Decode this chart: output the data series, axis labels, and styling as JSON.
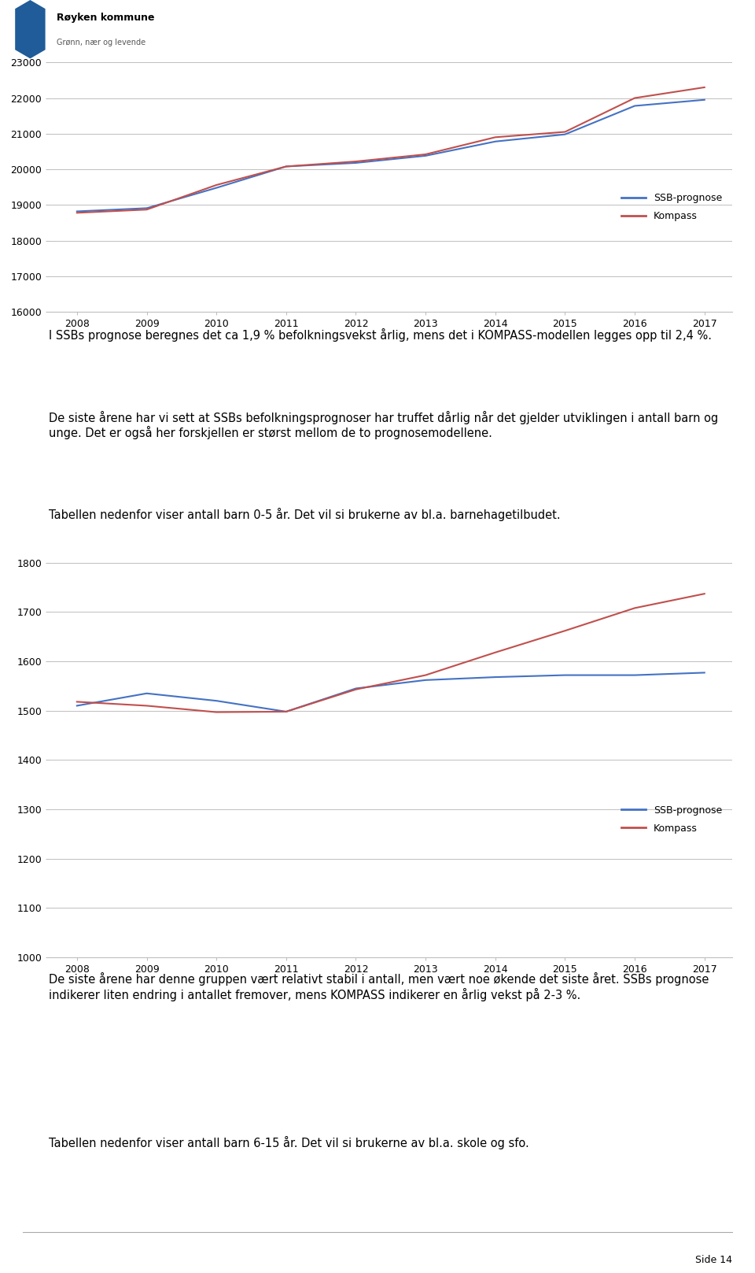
{
  "years": [
    2008,
    2009,
    2010,
    2011,
    2012,
    2013,
    2014,
    2015,
    2016,
    2017
  ],
  "chart1_ssb": [
    18820,
    18910,
    19480,
    20080,
    20180,
    20380,
    20780,
    20980,
    21780,
    21950
  ],
  "chart1_kompass": [
    18780,
    18870,
    19560,
    20080,
    20220,
    20420,
    20900,
    21050,
    22000,
    22300
  ],
  "chart1_ylim": [
    16000,
    23000
  ],
  "chart1_yticks": [
    16000,
    17000,
    18000,
    19000,
    20000,
    21000,
    22000,
    23000
  ],
  "chart2_ssb": [
    1510,
    1535,
    1520,
    1498,
    1545,
    1562,
    1568,
    1572,
    1572,
    1577
  ],
  "chart2_kompass": [
    1518,
    1510,
    1497,
    1498,
    1543,
    1572,
    1618,
    1662,
    1708,
    1737
  ],
  "chart2_ylim": [
    1000,
    1800
  ],
  "chart2_yticks": [
    1000,
    1100,
    1200,
    1300,
    1400,
    1500,
    1600,
    1700,
    1800
  ],
  "color_ssb": "#4472C4",
  "color_kompass": "#C0504D",
  "legend_ssb": "SSB-prognose",
  "legend_kompass": "Kompass",
  "text1": "I SSBs prognose beregnes det ca 1,9 % befolkningsvekst årlig, mens det i KOMPASS-modellen legges opp til 2,4 %.",
  "text2": "De siste årene har vi sett at SSBs befolkningsprognoser har truffet dårlig når det gjelder utviklingen i antall barn og unge. Det er også her forskjellen er størst mellom de to prognosemodellene.",
  "text3": "Tabellen nedenfor viser antall barn 0-5 år. Det vil si brukerne av bl.a. barnehagetilbudet.",
  "text4": "De siste årene har denne gruppen vært relativt stabil i antall, men vært noe økende det siste året. SSBs prognose indikerer liten endring i antallet fremover, mens KOMPASS indikerer en årlig vekst på 2-3 %.",
  "text5": "Tabellen nedenfor viser antall barn 6-15 år. Det vil si brukerne av bl.a. skole og sfo.",
  "page_text": "Side 14",
  "logo_name": "Røyken kommune",
  "logo_sub": "Grønn, nær og levende",
  "bg_color": "#FFFFFF",
  "chart_bg": "#FFFFFF",
  "grid_color": "#BFBFBF",
  "line_width": 1.5,
  "border_color": "#AAAAAA"
}
